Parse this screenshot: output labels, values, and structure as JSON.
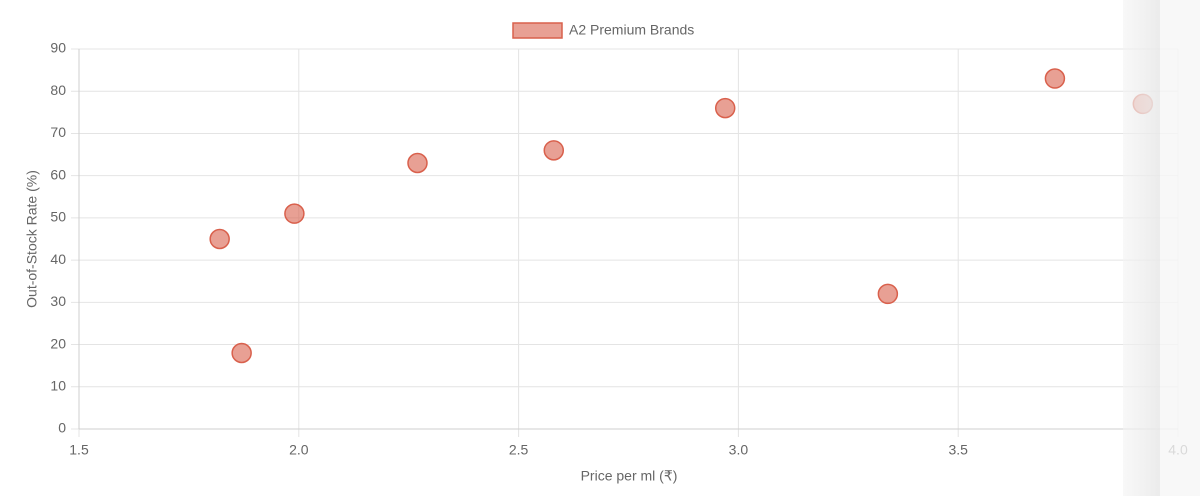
{
  "chart_data": {
    "type": "scatter",
    "x": [
      1.82,
      1.87,
      1.99,
      2.27,
      2.58,
      2.97,
      3.34,
      3.72,
      3.92
    ],
    "series": [
      {
        "name": "A2 Premium Brands",
        "color": "#d9604c",
        "values": [
          45,
          18,
          51,
          63,
          66,
          76,
          32,
          83,
          77
        ]
      }
    ],
    "xlabel": "Price per ml (₹)",
    "ylabel": "Out-of-Stock Rate (%)",
    "xlim": [
      1.5,
      4.0
    ],
    "xticks": [
      1.5,
      {
        "value": 2,
        "label": "2.0"
      },
      2.5,
      {
        "value": 3,
        "label": "3.0"
      },
      3.5,
      {
        "value": 4,
        "label": "4.0"
      }
    ],
    "ylim": [
      0,
      90
    ],
    "yticks": [
      0,
      10,
      20,
      30,
      40,
      50,
      60,
      70,
      80,
      90
    ],
    "grid": true,
    "legend": "top"
  }
}
